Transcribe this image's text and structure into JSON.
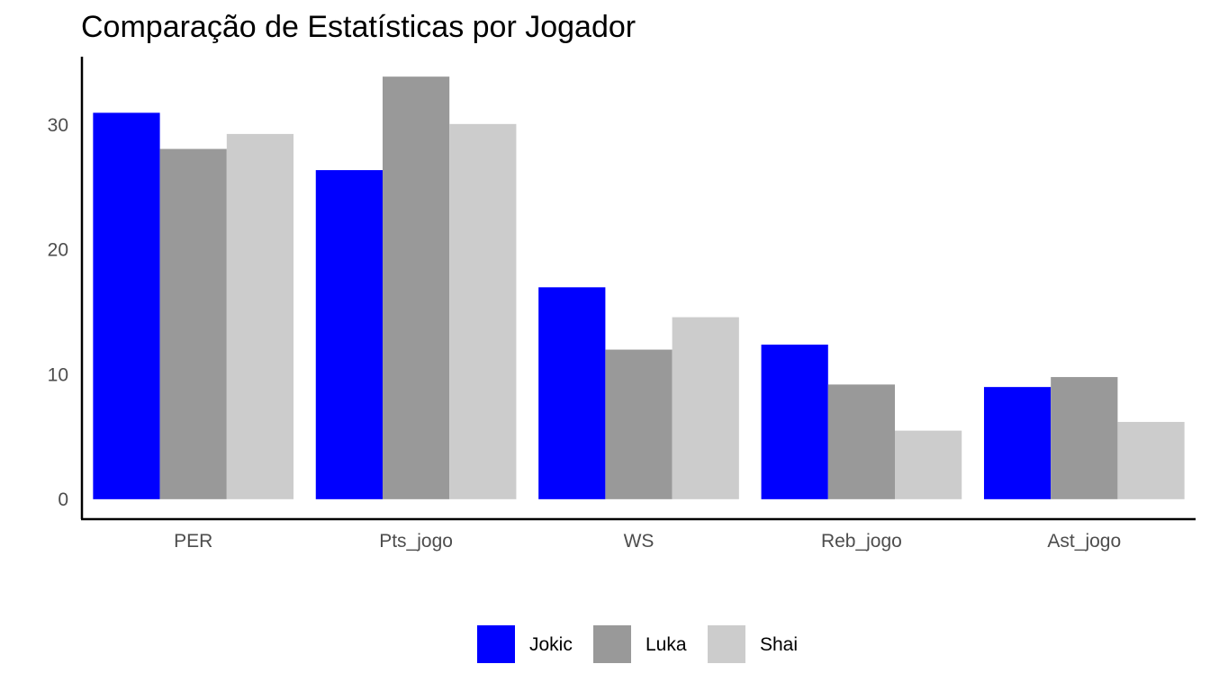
{
  "chart_data": {
    "type": "bar",
    "title": "Comparação de Estatísticas por Jogador",
    "xlabel": "",
    "ylabel": "",
    "categories": [
      "PER",
      "Pts_jogo",
      "WS",
      "Reb_jogo",
      "Ast_jogo"
    ],
    "series": [
      {
        "name": "Jokic",
        "color": "#0000FF",
        "values": [
          31.0,
          26.4,
          17.0,
          12.4,
          9.0
        ]
      },
      {
        "name": "Luka",
        "color": "#999999",
        "values": [
          28.1,
          33.9,
          12.0,
          9.2,
          9.8
        ]
      },
      {
        "name": "Shai",
        "color": "#CCCCCC",
        "values": [
          29.3,
          30.1,
          14.6,
          5.5,
          6.2
        ]
      }
    ],
    "yticks": [
      "0",
      "10",
      "20",
      "30"
    ],
    "ylim": [
      -1.6,
      35.5
    ],
    "grid": false,
    "legend_position": "bottom"
  }
}
